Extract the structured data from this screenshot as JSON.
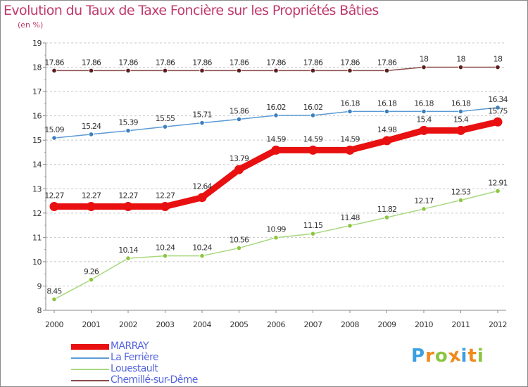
{
  "title": "Evolution du Taux de Taxe Foncière sur les Propriétés Bâties",
  "subtitle": "(en %)",
  "logo": {
    "letters": [
      "P",
      "r",
      "o",
      "x",
      "i",
      "t",
      "i"
    ],
    "colors": [
      "#3aa0e0",
      "#f08a1c",
      "#8cc63e",
      "#f08a1c",
      "#3aa0e0",
      "#f08a1c",
      "#8cc63e"
    ]
  },
  "chart_data": {
    "type": "line",
    "title": "Evolution du Taux de Taxe Foncière sur les Propriétés Bâties",
    "ylabel": "(en %)",
    "xlabel": "",
    "x": [
      "2000",
      "2001",
      "2002",
      "2003",
      "2004",
      "2005",
      "2006",
      "2007",
      "2008",
      "2009",
      "2010",
      "2011",
      "2012"
    ],
    "yticks": [
      "8",
      "9",
      "10",
      "11",
      "12",
      "13",
      "14",
      "15",
      "16",
      "17",
      "18",
      "19"
    ],
    "ylim": [
      8,
      19
    ],
    "grid": "horizontal dashed",
    "legend": "bottom-left",
    "series": [
      {
        "name": "MARRAY",
        "color": "#e81010",
        "emphasis": true,
        "values": [
          12.27,
          12.27,
          12.27,
          12.27,
          12.64,
          13.79,
          14.59,
          14.59,
          14.59,
          14.98,
          15.4,
          15.4,
          15.75
        ],
        "labels": [
          "12.27",
          "12.27",
          "12.27",
          "12.27",
          "12.64",
          "13.79",
          "14.59",
          "14.59",
          "14.59",
          "14.98",
          "15.4",
          "15.4",
          "15.75"
        ]
      },
      {
        "name": "La Ferrière",
        "color": "#5b9bd5",
        "marker": "#3c7fbf",
        "values": [
          15.09,
          15.24,
          15.39,
          15.55,
          15.71,
          15.86,
          16.02,
          16.02,
          16.18,
          16.18,
          16.18,
          16.18,
          16.34
        ],
        "labels": [
          "15.09",
          "15.24",
          "15.39",
          "15.55",
          "15.71",
          "15.86",
          "16.02",
          "16.02",
          "16.18",
          "16.18",
          "16.18",
          "16.18",
          "16.34"
        ]
      },
      {
        "name": "Louestault",
        "color": "#a8d880",
        "marker": "#8cc63e",
        "values": [
          8.45,
          9.26,
          10.14,
          10.24,
          10.24,
          10.56,
          10.99,
          11.15,
          11.48,
          11.82,
          12.17,
          12.53,
          12.91
        ],
        "labels": [
          "8.45",
          "9.26",
          "10.14",
          "10.24",
          "10.24",
          "10.56",
          "10.99",
          "11.15",
          "11.48",
          "11.82",
          "12.17",
          "12.53",
          "12.91"
        ]
      },
      {
        "name": "Chemillé-sur-Dême",
        "color": "#8a4a4a",
        "marker": "#5a1e1e",
        "values": [
          17.86,
          17.86,
          17.86,
          17.86,
          17.86,
          17.86,
          17.86,
          17.86,
          17.86,
          17.86,
          18,
          18,
          18
        ],
        "labels": [
          "17.86",
          "17.86",
          "17.86",
          "17.86",
          "17.86",
          "17.86",
          "17.86",
          "17.86",
          "17.86",
          "17.86",
          "18",
          "18",
          "18"
        ]
      }
    ]
  }
}
